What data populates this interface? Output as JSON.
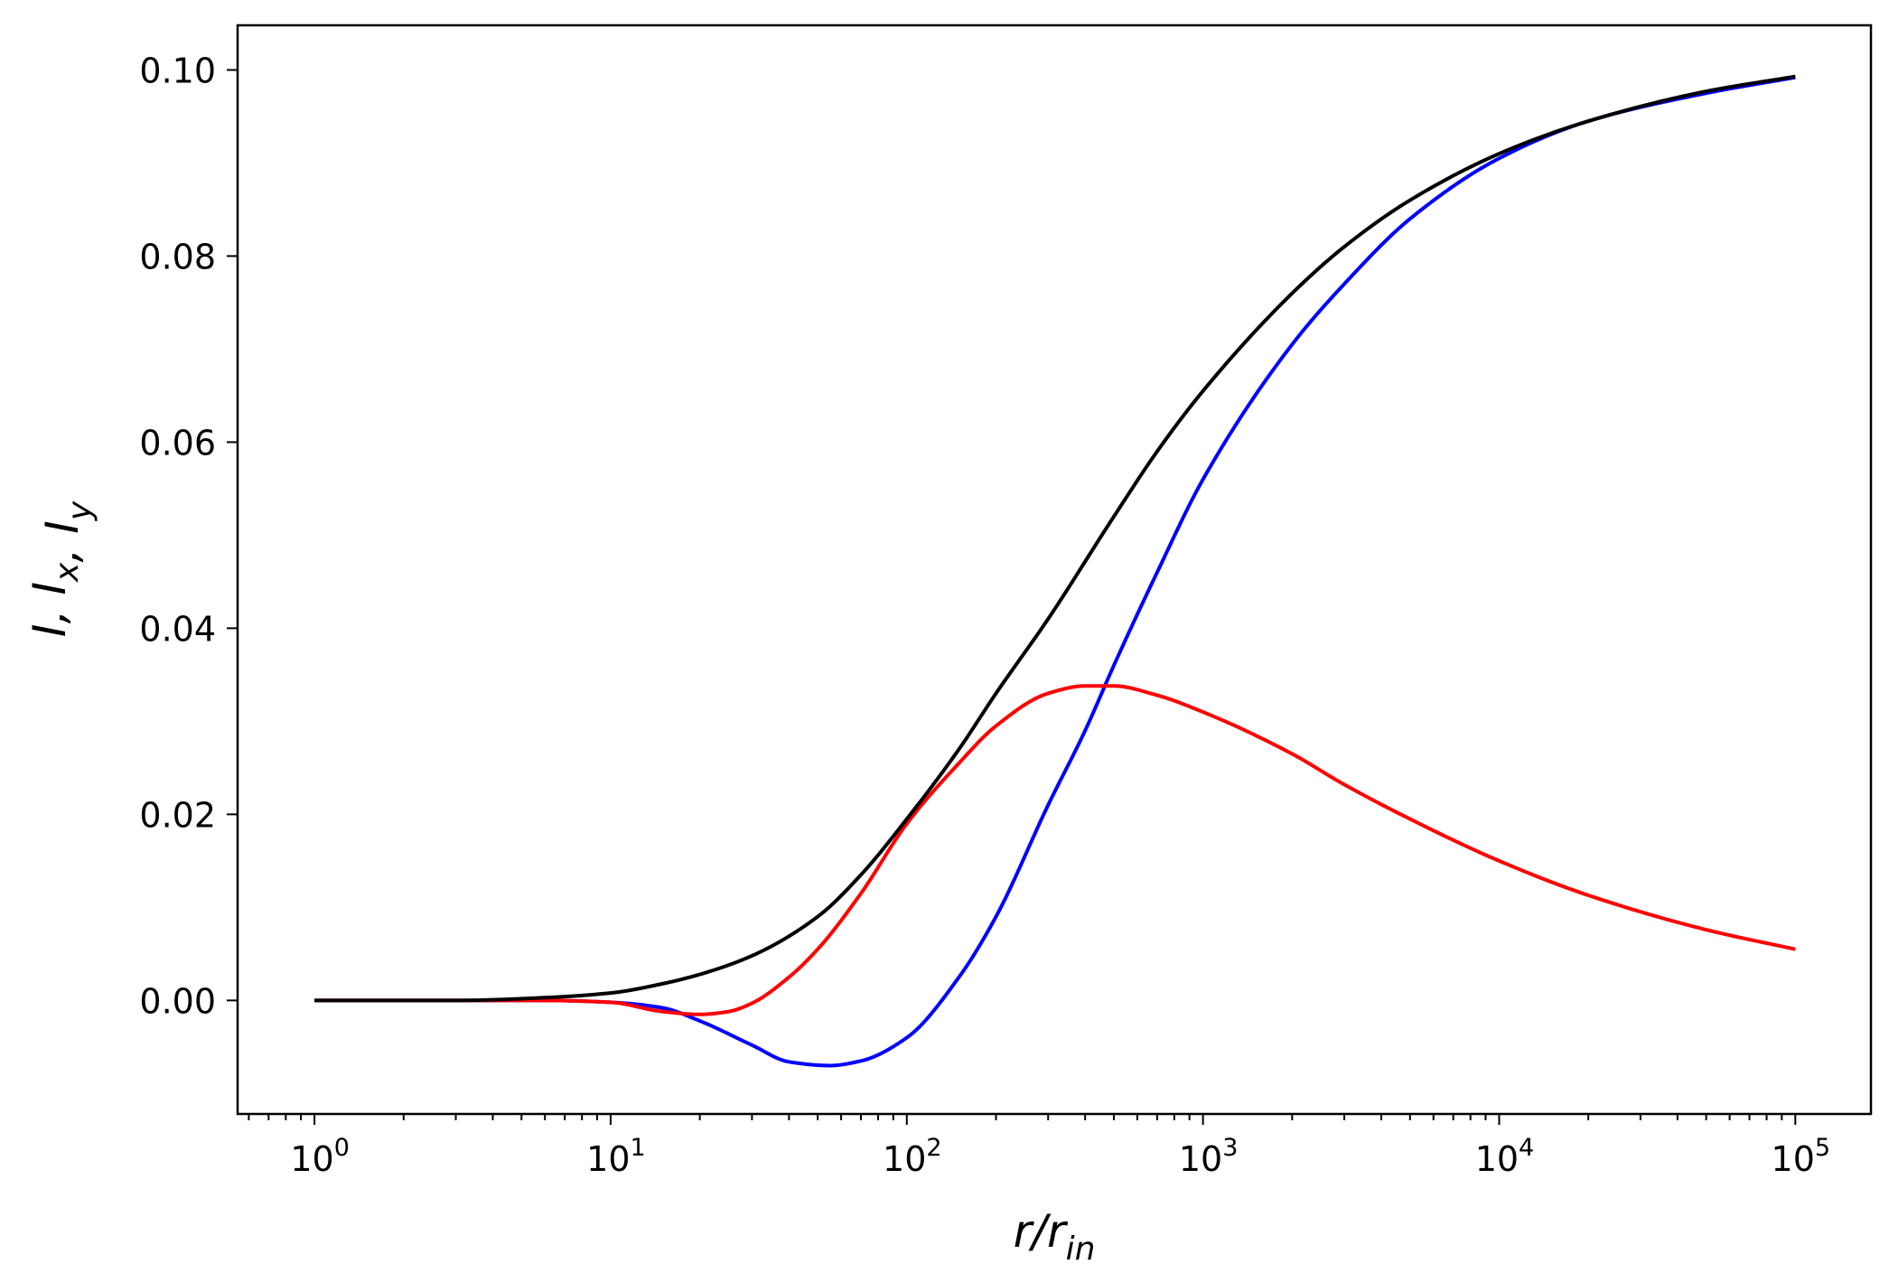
{
  "chart_data": {
    "type": "line",
    "xscale": "log",
    "xlim": [
      0.55,
      180000
    ],
    "ylim": [
      -0.0122,
      0.1048
    ],
    "xlabel": {
      "base": "r/r",
      "sub": "in"
    },
    "ylabel": {
      "parts": [
        {
          "main": "I, I",
          "sub": ""
        },
        {
          "main": "",
          "sub": "x"
        },
        {
          "main": ", I",
          "sub": ""
        },
        {
          "main": "",
          "sub": "y"
        }
      ]
    },
    "x_ticks": [
      {
        "value": 1,
        "base": "10",
        "exp": "0"
      },
      {
        "value": 10,
        "base": "10",
        "exp": "1"
      },
      {
        "value": 100,
        "base": "10",
        "exp": "2"
      },
      {
        "value": 1000,
        "base": "10",
        "exp": "3"
      },
      {
        "value": 10000,
        "base": "10",
        "exp": "4"
      },
      {
        "value": 100000,
        "base": "10",
        "exp": "5"
      }
    ],
    "y_ticks": [
      {
        "value": 0.0,
        "label": "0.00"
      },
      {
        "value": 0.02,
        "label": "0.02"
      },
      {
        "value": 0.04,
        "label": "0.04"
      },
      {
        "value": 0.06,
        "label": "0.06"
      },
      {
        "value": 0.08,
        "label": "0.08"
      },
      {
        "value": 0.1,
        "label": "0.10"
      }
    ],
    "grid": false,
    "legend": "none",
    "series": [
      {
        "color": "#0000ff",
        "x": [
          1,
          3,
          6,
          10,
          15,
          20,
          30,
          40,
          55,
          70,
          100,
          150,
          200,
          300,
          400,
          500,
          700,
          1000,
          2000,
          3000,
          5000,
          10000,
          20000,
          50000,
          100000
        ],
        "y": [
          0.0,
          0.0,
          0.0,
          -0.0002,
          -0.0008,
          -0.0022,
          -0.0048,
          -0.0066,
          -0.007,
          -0.0065,
          -0.004,
          0.0025,
          0.009,
          0.021,
          0.029,
          0.036,
          0.046,
          0.056,
          0.0705,
          0.077,
          0.084,
          0.0905,
          0.0945,
          0.0975,
          0.0992
        ]
      },
      {
        "color": "#ff0000",
        "x": [
          1,
          3,
          6,
          10,
          15,
          20,
          25,
          30,
          40,
          50,
          70,
          100,
          150,
          200,
          300,
          400,
          500,
          700,
          1000,
          2000,
          3000,
          5000,
          10000,
          20000,
          50000,
          100000
        ],
        "y": [
          0.0,
          0.0,
          0.0,
          -0.0002,
          -0.0012,
          -0.0015,
          -0.0012,
          -0.0003,
          0.0025,
          0.0055,
          0.0115,
          0.019,
          0.0255,
          0.0295,
          0.033,
          0.0338,
          0.0338,
          0.0328,
          0.031,
          0.0265,
          0.0232,
          0.0195,
          0.015,
          0.0113,
          0.0076,
          0.0055
        ]
      },
      {
        "color": "#000000",
        "x": [
          1,
          3,
          6,
          10,
          15,
          20,
          30,
          50,
          70,
          100,
          150,
          200,
          300,
          500,
          700,
          1000,
          2000,
          3000,
          5000,
          10000,
          20000,
          50000,
          100000
        ],
        "y": [
          0.0,
          0.0,
          0.0003,
          0.0008,
          0.0018,
          0.0028,
          0.0048,
          0.009,
          0.0135,
          0.0195,
          0.027,
          0.033,
          0.041,
          0.052,
          0.059,
          0.0655,
          0.076,
          0.081,
          0.086,
          0.091,
          0.0945,
          0.0977,
          0.0993
        ]
      }
    ]
  }
}
